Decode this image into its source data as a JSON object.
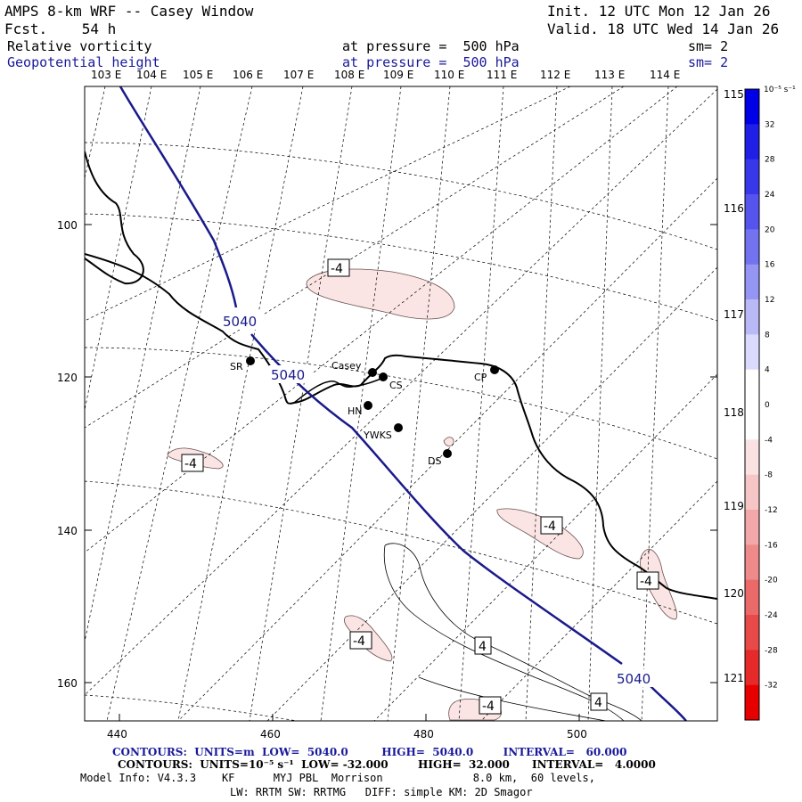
{
  "header": {
    "title": "AMPS 8-km WRF -- Casey Window",
    "forecast": "Fcst.    54 h",
    "init": "Init. 12 UTC Mon 12 Jan 26",
    "valid": "Valid. 18 UTC Wed 14 Jan 26",
    "field1": "Relative vorticity",
    "field1_level": "at pressure =  500 hPa",
    "field1_sm": "sm= 2",
    "field2": "Geopotential height",
    "field2_level": "at pressure =  500 hPa",
    "field2_sm": "sm= 2"
  },
  "top_longitudes": [
    "103 E",
    "104 E",
    "105 E",
    "106 E",
    "107 E",
    "108 E",
    "109 E",
    "110 E",
    "111 E",
    "112 E",
    "113 E",
    "114 E"
  ],
  "right_longitudes": [
    "115 E",
    "116 E",
    "117 E",
    "118 E",
    "119 E",
    "120 E",
    "121 E"
  ],
  "y_axis": [
    "100",
    "120",
    "140",
    "160"
  ],
  "x_axis": [
    "440",
    "460",
    "480",
    "500"
  ],
  "stations": [
    {
      "name": "SR"
    },
    {
      "name": "Casey"
    },
    {
      "name": "CS"
    },
    {
      "name": "CP"
    },
    {
      "name": "HN"
    },
    {
      "name": "YWKS"
    },
    {
      "name": "DS"
    }
  ],
  "height_labels": [
    "5040",
    "5040",
    "5040"
  ],
  "vorticity_labels": [
    "-4",
    "-4",
    "-4",
    "-4",
    "-4",
    "-4",
    "4",
    "4"
  ],
  "colorbar": {
    "units": "10⁻⁵ s⁻¹",
    "ticks": [
      "32",
      "28",
      "24",
      "20",
      "16",
      "12",
      "8",
      "4",
      "0",
      "-4",
      "-8",
      "-12",
      "-16",
      "-20",
      "-24",
      "-28",
      "-32"
    ],
    "colors": [
      "#0000e6",
      "#1f1fe6",
      "#3838ea",
      "#5555ee",
      "#7373f0",
      "#9595f4",
      "#b9b9f8",
      "#dadafc",
      "#ffffff",
      "#ffffff",
      "#fae2e2",
      "#f6c6c6",
      "#f2a8a8",
      "#ee8a8a",
      "#ea6a6a",
      "#e84a4a",
      "#e62a2a",
      "#e60000"
    ]
  },
  "footer": {
    "line1": "CONTOURS:  UNITS=m  LOW=  5040.0         HIGH=  5040.0        INTERVAL=   60.000",
    "line2": "CONTOURS:  UNITS=10⁻⁵ s⁻¹  LOW= -32.000        HIGH=  32.000      INTERVAL=   4.0000",
    "line3": "Model Info: V4.3.3    KF      MYJ PBL  Morrison              8.0 km,  60 levels,",
    "line4": "LW: RRTM SW: RRTMG   DIFF: simple KM: 2D Smagor"
  }
}
